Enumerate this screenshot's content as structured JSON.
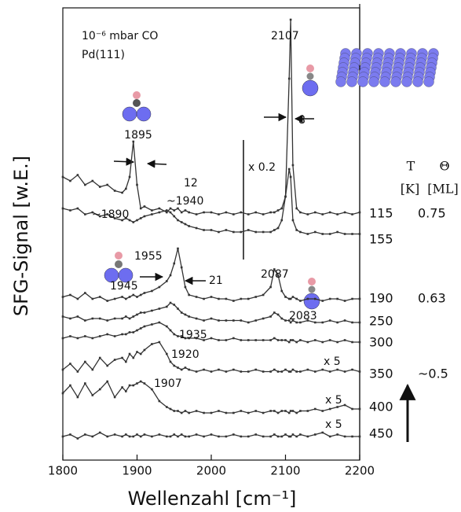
{
  "chart_data": {
    "type": "line",
    "x_label": "Wellenzahl [cm⁻¹]",
    "y_label": "SFG-Signal [w.E.]",
    "xlim": [
      1800,
      2200
    ],
    "xticks": [
      1800,
      1900,
      2000,
      2100,
      2200
    ],
    "ylim": [
      0,
      115
    ],
    "x": [
      1800,
      1810,
      1820,
      1830,
      1840,
      1850,
      1860,
      1870,
      1880,
      1885,
      1890,
      1895,
      1900,
      1905,
      1910,
      1920,
      1930,
      1940,
      1945,
      1950,
      1955,
      1960,
      1965,
      1970,
      1980,
      1990,
      2000,
      2010,
      2020,
      2030,
      2040,
      2050,
      2060,
      2070,
      2080,
      2085,
      2090,
      2095,
      2100,
      2105,
      2107,
      2110,
      2115,
      2120,
      2130,
      2140,
      2150,
      2160,
      2170,
      2180,
      2190,
      2200
    ],
    "series": [
      {
        "name": "115",
        "color": "#333333",
        "values": [
          72,
          71,
          72.5,
          70,
          71,
          69.5,
          70,
          68.5,
          68,
          69,
          72,
          81,
          70,
          64,
          64.5,
          63.5,
          64,
          63,
          64,
          63.5,
          64,
          63,
          63.5,
          63,
          62.5,
          63,
          63,
          62.5,
          63,
          62.5,
          63,
          62.5,
          63,
          62.5,
          63,
          63,
          63.5,
          64,
          67,
          97,
          112,
          75,
          64,
          63,
          62.5,
          63,
          62.5,
          63,
          62.5,
          63,
          62.5,
          63
        ]
      },
      {
        "name": "155",
        "color": "#333333",
        "values": [
          64,
          63.5,
          64,
          62.5,
          63,
          62,
          62.5,
          61.5,
          61,
          61.5,
          61,
          60.5,
          61,
          61.5,
          62,
          62.5,
          63,
          63.5,
          63,
          62,
          61,
          60.5,
          60,
          59.5,
          59,
          58.5,
          58.5,
          58,
          58.5,
          58,
          58,
          58.5,
          58,
          58,
          58,
          58.5,
          59,
          61,
          67,
          74,
          72,
          61,
          58.5,
          58,
          57.5,
          58,
          57.5,
          57.5,
          58,
          57.5,
          57.5,
          57.5
        ]
      },
      {
        "name": "190",
        "color": "#333333",
        "values": [
          41.5,
          42,
          41,
          42.5,
          41,
          41.5,
          40.5,
          41,
          41.5,
          41,
          41.5,
          42,
          41.5,
          42,
          42.5,
          43,
          44,
          45.5,
          47,
          50,
          53.8,
          49,
          44,
          42,
          41.5,
          41,
          41.5,
          41,
          41,
          40.5,
          41,
          41,
          41.5,
          42,
          44,
          48.5,
          47,
          43,
          41.5,
          41,
          41,
          41.5,
          41,
          40.5,
          41,
          41,
          40.5,
          41,
          41,
          40.5,
          41,
          41
        ]
      },
      {
        "name": "250",
        "color": "#333333",
        "values": [
          36.5,
          36,
          36.5,
          35.5,
          36,
          36,
          35.5,
          36,
          36,
          36.5,
          36,
          36.5,
          37,
          37.5,
          37.5,
          38,
          38.5,
          39,
          40,
          39.5,
          38.5,
          37.5,
          37,
          36.5,
          36,
          35.5,
          36,
          35.5,
          35.5,
          35.5,
          35.5,
          35,
          35.5,
          36,
          36.5,
          37.5,
          37,
          36,
          35.5,
          35.5,
          35,
          35.5,
          35,
          35,
          35.5,
          35,
          35,
          35.5,
          35,
          35.5,
          35,
          35
        ]
      },
      {
        "name": "300",
        "color": "#333333",
        "values": [
          31,
          31.5,
          31,
          31.5,
          31,
          31.5,
          32,
          31.5,
          32,
          32,
          32.5,
          32.5,
          33,
          33.5,
          34,
          34.5,
          35,
          34,
          33,
          32,
          31.5,
          31.5,
          31,
          31,
          31,
          30.5,
          31,
          30.5,
          30.5,
          31,
          30.5,
          30.5,
          30.5,
          30.5,
          30.5,
          31,
          30.5,
          30.5,
          30.5,
          30,
          30.5,
          30.5,
          30,
          30.5,
          30,
          30.5,
          30,
          30.5,
          30,
          30.5,
          30,
          30
        ]
      },
      {
        "name": "350",
        "color": "#333333",
        "values": [
          23,
          24.5,
          22.5,
          25,
          23,
          26,
          24,
          25.5,
          26,
          25,
          27,
          26,
          27.5,
          27,
          28,
          29.5,
          30,
          27,
          25,
          24,
          23.5,
          23,
          23.5,
          23,
          22.5,
          23,
          22.5,
          23,
          22.5,
          23,
          22.5,
          22.5,
          23,
          22.5,
          22.5,
          23,
          22.5,
          22.5,
          23,
          22.5,
          22.5,
          23,
          22.5,
          22.5,
          23,
          22.5,
          23,
          22.5,
          23,
          22.5,
          23,
          22.5
        ]
      },
      {
        "name": "400",
        "color": "#333333",
        "values": [
          17,
          19,
          16,
          19.5,
          16.5,
          18,
          20,
          16,
          18.5,
          17.5,
          19,
          19,
          19.5,
          20,
          19.5,
          18,
          15,
          13.5,
          13,
          12.5,
          12.5,
          12,
          12.5,
          12,
          12.5,
          12,
          12,
          12.5,
          12,
          12,
          12.5,
          12,
          12.5,
          12,
          12.5,
          12.5,
          12,
          12.5,
          12.5,
          12,
          12.5,
          12.5,
          12,
          12.5,
          12.5,
          13,
          12.5,
          13,
          13.5,
          14,
          13,
          13
        ]
      },
      {
        "name": "450",
        "color": "#333333",
        "values": [
          6,
          6.5,
          5.5,
          6.5,
          6,
          7,
          6,
          6.5,
          6,
          6.5,
          6,
          6,
          6.5,
          6,
          6.5,
          6,
          6.5,
          6,
          6,
          6.5,
          6,
          6.5,
          6,
          6,
          6.5,
          6,
          6.5,
          6,
          6,
          6.5,
          6,
          6,
          6.5,
          6,
          6,
          6.5,
          6,
          6,
          6.5,
          6,
          6,
          6.5,
          6,
          6.5,
          6,
          6.5,
          7,
          6,
          6.5,
          6,
          6,
          6
        ]
      }
    ],
    "coverages": [
      "0.75",
      "0.63",
      "~0.5"
    ],
    "temperature_header": "T",
    "temperature_unit": "[K]",
    "coverage_header": "Θ",
    "coverage_unit": "[ML]",
    "conditions": [
      "10⁻⁶ mbar CO",
      "Pd(111)"
    ],
    "annotations": [
      "1895",
      "12",
      "~1890",
      "~1940",
      "x 0.2",
      "2107",
      "8",
      "1955",
      "21",
      "2087",
      "1945",
      "2083",
      "1935",
      "1920",
      "1907",
      "x 5",
      "x 5",
      "x 5"
    ]
  }
}
